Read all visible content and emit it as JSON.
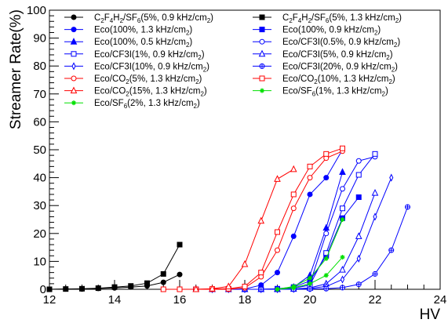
{
  "chart_data": {
    "type": "line",
    "title": "",
    "xlabel": "HV",
    "ylabel": "Streamer Rate(%)",
    "xlim": [
      12,
      24
    ],
    "ylim": [
      0,
      100
    ],
    "xticks": [
      "12",
      "14",
      "16",
      "18",
      "20",
      "22",
      "24"
    ],
    "yticks": [
      "0",
      "10",
      "20",
      "30",
      "40",
      "50",
      "60",
      "70",
      "80",
      "90",
      "100"
    ],
    "grid": false,
    "legend_position": "top-left, two columns",
    "series": [
      {
        "name": "C2F4H2/SF6(5%, 0.9 kHz/cm2)",
        "label_parts": [
          "C",
          "2",
          "F",
          "4",
          "H",
          "2",
          "/SF",
          "6",
          "(5%, 0.9 kHz/cm",
          "2",
          ")"
        ],
        "color": "#000000",
        "marker": "filled-circle",
        "x": [
          12.0,
          12.5,
          13.0,
          13.5,
          14.0,
          14.5,
          15.0,
          15.5,
          16.0
        ],
        "y": [
          0.0,
          0.1,
          0.1,
          0.3,
          0.5,
          0.8,
          1.2,
          2.5,
          5.3
        ]
      },
      {
        "name": "C2F4H2/SF6(5%, 1.3 kHz/cm2)",
        "label_parts": [
          "C",
          "2",
          "F",
          "4",
          "H",
          "2",
          "/SF",
          "6",
          "(5%, 1.3 kHz/cm",
          "2",
          ")"
        ],
        "color": "#000000",
        "marker": "filled-square",
        "x": [
          12.0,
          12.5,
          13.0,
          13.5,
          14.0,
          14.5,
          15.0,
          15.5,
          16.0
        ],
        "y": [
          0.0,
          0.1,
          0.2,
          0.4,
          0.8,
          1.2,
          2.2,
          5.5,
          16.0
        ]
      },
      {
        "name": "Eco(100%, 1.3 kHz/cm2)",
        "label_parts": [
          "Eco(100%, 1.3 kHz/cm",
          "2",
          ")"
        ],
        "color": "#0000ff",
        "marker": "filled-circle",
        "x": [
          16.5,
          17.0,
          17.5,
          18.0,
          18.5,
          19.0,
          19.5,
          20.0,
          20.5,
          21.0
        ],
        "y": [
          0.0,
          0.0,
          0.0,
          0.1,
          1.5,
          6.0,
          19.0,
          34.0,
          40.0,
          50.0
        ]
      },
      {
        "name": "Eco(100%, 0.9 kHz/cm2)",
        "label_parts": [
          "Eco(100%, 0.9 kHz/cm",
          "2",
          ")"
        ],
        "color": "#0000ff",
        "marker": "filled-square",
        "x": [
          16.5,
          17.0,
          17.5,
          18.0,
          18.5,
          19.0,
          19.5,
          20.0,
          20.5,
          21.0,
          21.5
        ],
        "y": [
          0.0,
          0.0,
          0.0,
          0.0,
          0.0,
          0.2,
          0.8,
          3.0,
          12.0,
          25.5,
          33.0
        ]
      },
      {
        "name": "Eco(100%, 0.5 kHz/cm2)",
        "label_parts": [
          "Eco(100%, 0.5 kHz/cm",
          "2",
          ")"
        ],
        "color": "#0000ff",
        "marker": "filled-triangle",
        "x": [
          16.5,
          17.0,
          17.5,
          18.0,
          18.5,
          19.0,
          19.5,
          20.0,
          20.5,
          21.0
        ],
        "y": [
          0.0,
          0.0,
          0.0,
          0.0,
          0.0,
          0.1,
          0.8,
          5.0,
          22.0,
          42.0
        ]
      },
      {
        "name": "Eco/CF3I(0.5%, 0.9 kHz/cm2)",
        "label_parts": [
          "Eco/CF3I(0.5%, 0.9 kHz/cm",
          "2",
          ")"
        ],
        "color": "#0000ff",
        "marker": "open-circle",
        "x": [
          16.5,
          17.0,
          17.5,
          18.0,
          18.5,
          19.0,
          19.5,
          20.0,
          20.5,
          21.0,
          21.5,
          22.0
        ],
        "y": [
          0.0,
          0.0,
          0.0,
          0.0,
          0.0,
          0.1,
          0.5,
          2.0,
          20.0,
          36.0,
          46.0,
          47.5
        ]
      },
      {
        "name": "Eco/CF3I(1%, 0.9 kHz/cm2)",
        "label_parts": [
          "Eco/CF3I(1%, 0.9 kHz/cm",
          "2",
          ")"
        ],
        "color": "#0000ff",
        "marker": "open-square",
        "x": [
          16.5,
          17.0,
          17.5,
          18.0,
          18.5,
          19.0,
          19.5,
          20.0,
          20.5,
          21.0,
          21.5,
          22.0
        ],
        "y": [
          0.0,
          0.0,
          0.0,
          0.0,
          0.0,
          0.1,
          0.4,
          1.5,
          13.0,
          29.0,
          41.0,
          48.5
        ]
      },
      {
        "name": "Eco/CF3I(5%, 0.9 kHz/cm2)",
        "label_parts": [
          "Eco/CF3I(5%, 0.9 kHz/cm",
          "2",
          ")"
        ],
        "color": "#0000ff",
        "marker": "open-triangle",
        "x": [
          17.0,
          17.5,
          18.0,
          18.5,
          19.0,
          19.5,
          20.0,
          20.5,
          21.0,
          21.5,
          22.0
        ],
        "y": [
          0.0,
          0.0,
          0.0,
          0.0,
          0.0,
          0.1,
          0.5,
          2.0,
          7.0,
          19.0,
          34.5
        ]
      },
      {
        "name": "Eco/CF3I(10%, 0.9 kHz/cm2)",
        "label_parts": [
          "Eco/CF3I(10%, 0.9 kHz/cm",
          "2",
          ")"
        ],
        "color": "#0000ff",
        "marker": "open-diamond",
        "x": [
          17.0,
          17.5,
          18.0,
          18.5,
          19.0,
          19.5,
          20.0,
          20.5,
          21.0,
          21.5,
          22.0,
          22.5
        ],
        "y": [
          0.0,
          0.0,
          0.0,
          0.0,
          0.0,
          0.1,
          0.3,
          1.0,
          3.5,
          11.0,
          26.0,
          40.0
        ]
      },
      {
        "name": "Eco/CF3I(20%, 0.9 kHz/cm2)",
        "label_parts": [
          "Eco/CF3I(20%, 0.9 kHz/cm",
          "2",
          ")"
        ],
        "color": "#0000ff",
        "marker": "open-cross",
        "x": [
          17.0,
          17.5,
          18.0,
          18.5,
          19.0,
          19.5,
          20.0,
          20.5,
          21.0,
          21.5,
          22.0,
          22.5,
          23.0
        ],
        "y": [
          0.0,
          0.0,
          0.0,
          0.0,
          0.0,
          0.0,
          0.1,
          0.2,
          0.6,
          1.8,
          5.5,
          14.0,
          29.5
        ]
      },
      {
        "name": "Eco/CO2(5%, 1.3 kHz/cm2)",
        "label_parts": [
          "Eco/CO",
          "2",
          "(5%, 1.3 kHz/cm",
          "2",
          ")"
        ],
        "color": "#ff0000",
        "marker": "open-circle",
        "x": [
          15.5,
          16.0,
          16.5,
          17.0,
          17.5,
          18.0,
          18.5,
          19.0,
          19.5,
          20.0,
          20.5,
          21.0
        ],
        "y": [
          0.0,
          0.0,
          0.0,
          0.0,
          0.0,
          0.5,
          4.5,
          14.0,
          29.0,
          40.0,
          47.0,
          49.5
        ]
      },
      {
        "name": "Eco/CO2(10%, 1.3 kHz/cm2)",
        "label_parts": [
          "Eco/CO",
          "2",
          "(10%, 1.3 kHz/cm",
          "2",
          ")"
        ],
        "color": "#ff0000",
        "marker": "open-square",
        "x": [
          15.5,
          16.0,
          16.5,
          17.0,
          17.5,
          18.0,
          18.5,
          19.0,
          19.5,
          20.0,
          20.5,
          21.0
        ],
        "y": [
          0.0,
          0.0,
          0.0,
          0.1,
          0.2,
          1.0,
          6.0,
          20.5,
          34.0,
          44.0,
          48.5,
          50.5
        ]
      },
      {
        "name": "Eco/CO2(15%, 1.3 kHz/cm2)",
        "label_parts": [
          "Eco/CO",
          "2",
          "(15%, 1.3 kHz/cm",
          "2",
          ")"
        ],
        "color": "#ff0000",
        "marker": "open-triangle",
        "x": [
          16.5,
          17.0,
          17.5,
          18.0,
          18.5,
          19.0,
          19.5
        ],
        "y": [
          0.0,
          0.2,
          1.0,
          9.0,
          24.5,
          39.5,
          43.0
        ]
      },
      {
        "name": "Eco/SF6(1%, 1.3 kHz/cm2)",
        "label_parts": [
          "Eco/SF",
          "6",
          "(1%, 1.3 kHz/cm",
          "2",
          ")"
        ],
        "color": "#00e000",
        "marker": "star",
        "x": [
          19.0,
          19.5,
          20.0,
          20.5,
          21.0
        ],
        "y": [
          0.0,
          0.5,
          2.0,
          5.0,
          11.5
        ]
      },
      {
        "name": "Eco/SF6(2%, 1.3 kHz/cm2)",
        "label_parts": [
          "Eco/SF",
          "6",
          "(2%, 1.3 kHz/cm",
          "2",
          ")"
        ],
        "color": "#00e000",
        "marker": "star",
        "x": [
          19.0,
          19.5,
          20.0,
          20.5,
          21.0
        ],
        "y": [
          0.0,
          1.0,
          4.0,
          11.0,
          25.0
        ]
      }
    ]
  }
}
